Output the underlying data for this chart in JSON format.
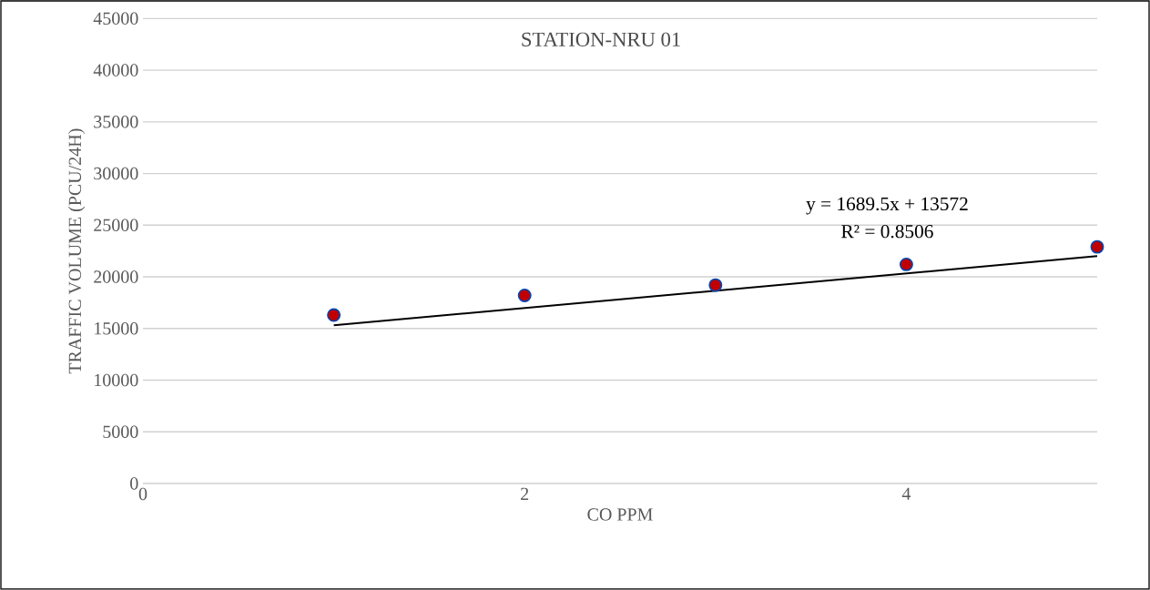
{
  "chart_data": {
    "type": "scatter",
    "title": "STATION-NRU 01",
    "xlabel": "CO PPM",
    "ylabel": "TRAFFIC VOLUME (PCU/24H)",
    "x": [
      1,
      2,
      3,
      4,
      5
    ],
    "series": [
      {
        "color": "#c00000",
        "marker": "circle",
        "values": [
          16300,
          18200,
          19200,
          21200,
          22900
        ]
      },
      {
        "type": "line",
        "color": "#000000",
        "marker": "none",
        "line_style": "solid",
        "x": [
          1,
          5
        ],
        "values": [
          15300,
          22000
        ]
      }
    ],
    "annotations": [
      "y = 1689.5x + 13572",
      "R² = 0.8506"
    ],
    "xlim": [
      0,
      5
    ],
    "xticks": [
      0,
      2,
      4
    ],
    "ylim": [
      0,
      45000
    ],
    "yticks": [
      0,
      5000,
      10000,
      15000,
      20000,
      25000,
      30000,
      35000,
      40000,
      45000
    ],
    "grid": "y"
  }
}
